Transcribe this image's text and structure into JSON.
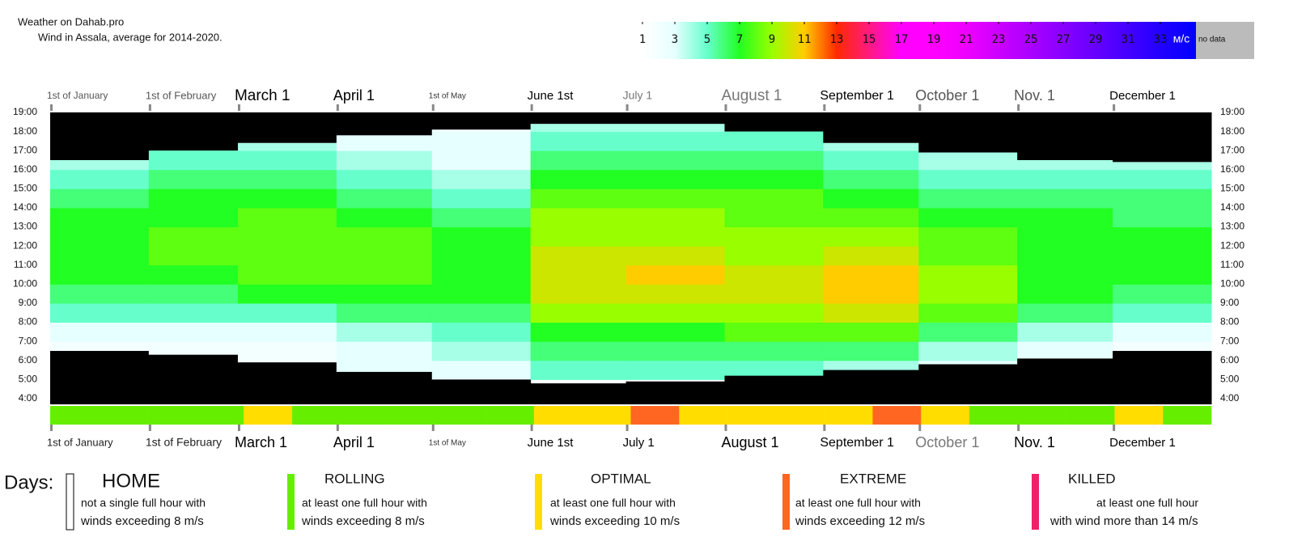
{
  "header": {
    "title": "Weather on Dahab.pro",
    "subtitle": "Wind in Assala, average for 2014-2020."
  },
  "colorscale": {
    "ticks": [
      1,
      3,
      5,
      7,
      9,
      11,
      13,
      15,
      17,
      19,
      21,
      23,
      25,
      27,
      29,
      31,
      33
    ],
    "colors": [
      "#ffffff",
      "#e6ffff",
      "#66ffcc",
      "#22ff22",
      "#99ff00",
      "#ffcc00",
      "#ff2a00",
      "#ff1a80",
      "#ff00ff",
      "#ff00ff",
      "#ee00ff",
      "#cc00ff",
      "#aa00ff",
      "#8800ff",
      "#6600ff",
      "#4400ff",
      "#2200ff"
    ],
    "lim": [
      0.6,
      35.2
    ],
    "unit": "м/с",
    "nodata": "no data"
  },
  "chart_data": {
    "type": "heatmap",
    "categories": [
      "1st of January",
      "1st of February",
      "March 1",
      "April 1",
      "1st of May",
      "June 1st",
      "July 1",
      "August 1",
      "September 1",
      "October 1",
      "Nov. 1",
      "December 1"
    ],
    "hours": [
      5,
      6,
      7,
      8,
      9,
      10,
      11,
      12,
      13,
      14,
      15,
      16,
      17,
      18
    ],
    "values": [
      [
        null,
        2,
        3,
        5,
        6,
        7,
        7,
        7,
        7,
        6,
        5,
        4,
        null,
        null
      ],
      [
        null,
        2,
        3,
        5,
        6,
        7,
        8,
        8,
        7,
        7,
        6,
        5,
        null,
        null
      ],
      [
        2,
        2,
        3,
        5,
        7,
        8,
        8,
        8,
        8,
        7,
        6,
        5,
        4,
        null
      ],
      [
        3,
        3,
        4,
        6,
        7,
        8,
        8,
        8,
        7,
        6,
        5,
        4,
        3,
        null
      ],
      [
        3,
        4,
        5,
        6,
        7,
        7,
        7,
        7,
        6,
        5,
        4,
        3,
        3,
        2
      ],
      [
        5,
        6,
        7,
        9,
        10,
        10,
        10,
        9,
        9,
        8,
        7,
        6,
        5,
        4
      ],
      [
        5,
        6,
        7,
        9,
        10,
        11,
        10,
        9,
        9,
        8,
        7,
        6,
        5,
        4
      ],
      [
        5,
        6,
        8,
        9,
        10,
        10,
        9,
        9,
        8,
        8,
        7,
        6,
        5,
        null
      ],
      [
        4,
        6,
        8,
        10,
        11,
        11,
        10,
        9,
        8,
        7,
        6,
        5,
        4,
        null
      ],
      [
        3,
        4,
        6,
        8,
        9,
        9,
        8,
        8,
        7,
        6,
        5,
        4,
        null,
        null
      ],
      [
        null,
        3,
        4,
        6,
        7,
        7,
        7,
        7,
        7,
        6,
        5,
        4,
        null,
        null
      ],
      [
        null,
        2,
        3,
        5,
        6,
        7,
        7,
        7,
        6,
        6,
        5,
        4,
        null,
        null
      ]
    ],
    "sunrise": [
      6.5,
      6.3,
      5.9,
      5.4,
      5.0,
      4.8,
      4.9,
      5.2,
      5.5,
      5.8,
      6.1,
      6.5
    ],
    "sunset": [
      16.5,
      17.0,
      17.4,
      17.8,
      18.1,
      18.4,
      18.4,
      18.0,
      17.4,
      16.9,
      16.5,
      16.4
    ],
    "ylim": [
      3.7,
      19.0
    ],
    "yticks": [
      {
        "value": 4,
        "label": "4:00"
      },
      {
        "value": 5,
        "label": "5:00"
      },
      {
        "value": 6,
        "label": "6:00"
      },
      {
        "value": 7,
        "label": "7:00"
      },
      {
        "value": 8,
        "label": "8:00"
      },
      {
        "value": 9,
        "label": "9:00"
      },
      {
        "value": 10,
        "label": "10:00"
      },
      {
        "value": 11,
        "label": "11:00"
      },
      {
        "value": 12,
        "label": "12:00"
      },
      {
        "value": 13,
        "label": "13:00"
      },
      {
        "value": 14,
        "label": "14:00"
      },
      {
        "value": 15,
        "label": "15:00"
      },
      {
        "value": 16,
        "label": "16:00"
      },
      {
        "value": 17,
        "label": "17:00"
      },
      {
        "value": 18,
        "label": "18:00"
      },
      {
        "value": 19,
        "label": "19:00"
      }
    ],
    "strip": [
      9,
      10,
      9,
      9,
      11,
      9,
      9,
      10,
      9,
      9,
      11,
      11,
      13,
      11,
      11,
      11,
      11,
      13,
      11,
      9,
      9,
      9,
      11,
      9
    ]
  },
  "legend": {
    "label": "Days:",
    "items": [
      {
        "title": "HOME",
        "lines": [
          "not a single full hour with",
          "winds exceeding 8 m/s"
        ],
        "color": "#ffffff"
      },
      {
        "title": "ROLLING",
        "lines": [
          "at least one full hour with",
          "winds exceeding 8 m/s"
        ],
        "color": "#66ee00",
        "threshold": 8
      },
      {
        "title": "OPTIMAL",
        "lines": [
          "at least one full hour with",
          "winds exceeding 10 m/s"
        ],
        "color": "#ffdd00",
        "threshold": 10
      },
      {
        "title": "EXTREME",
        "lines": [
          "at least one full hour with",
          "winds exceeding 12 m/s"
        ],
        "color": "#ff6622",
        "threshold": 12
      },
      {
        "title": "KILLED",
        "lines": [
          "at least one full hour",
          "with wind more than 14 m/s"
        ],
        "color": "#ee2266",
        "threshold": 14
      }
    ]
  }
}
